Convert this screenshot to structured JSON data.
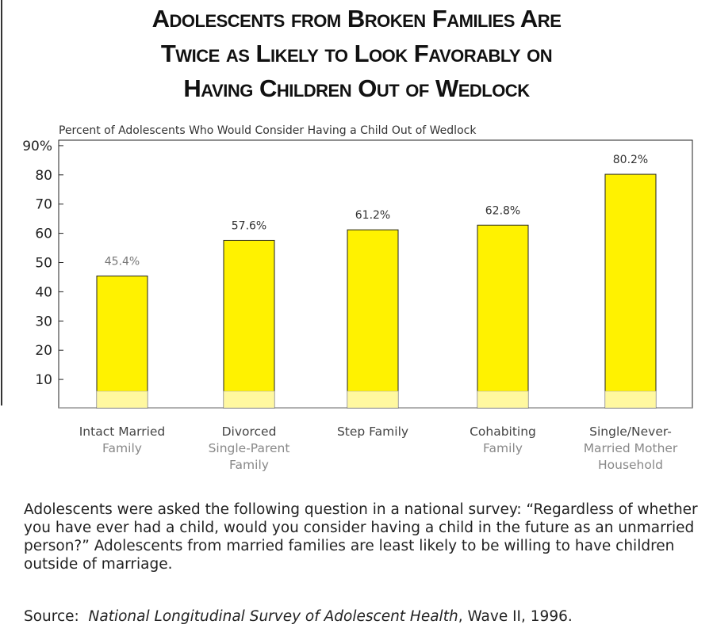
{
  "title_lines": [
    "Adolescents from Broken Families Are",
    "Twice as Likely to Look Favorably on",
    "Having Children Out of Wedlock"
  ],
  "chart_data": {
    "type": "bar",
    "title": "Adolescents from Broken Families Are Twice as Likely to Look Favorably on Having Children Out of Wedlock",
    "subtitle": "Percent of Adolescents Who Would Consider Having a Child Out of Wedlock",
    "categories": [
      [
        "Intact Married",
        "Family"
      ],
      [
        "Divorced",
        "Single-Parent",
        "Family"
      ],
      [
        "Step Family"
      ],
      [
        "Cohabiting",
        "Family"
      ],
      [
        "Single/Never-",
        "Married Mother",
        "Household"
      ]
    ],
    "values": [
      45.4,
      57.6,
      61.2,
      62.8,
      80.2
    ],
    "data_labels": [
      "45.4%",
      "57.6%",
      "61.2%",
      "62.8%",
      "80.2%"
    ],
    "yticks": [
      "10",
      "20",
      "30",
      "40",
      "50",
      "60",
      "70",
      "80",
      "90%"
    ],
    "ytick_values": [
      10,
      20,
      30,
      40,
      50,
      60,
      70,
      80,
      90
    ],
    "ylim": [
      0,
      92
    ],
    "xlabel": "",
    "ylabel": "",
    "grid": false,
    "bar_color": "#fff200"
  },
  "caption": "Adolescents were asked the following question in a national survey: “Regardless of whether you have ever had a child, would you consider having a child in the future as an unmarried person?” Adolescents from married families are least likely to be willing to have children outside of marriage.",
  "source": {
    "label": "Source:",
    "title": "National Longitudinal Survey of Adolescent Health",
    "rest": ", Wave II, 1996."
  }
}
